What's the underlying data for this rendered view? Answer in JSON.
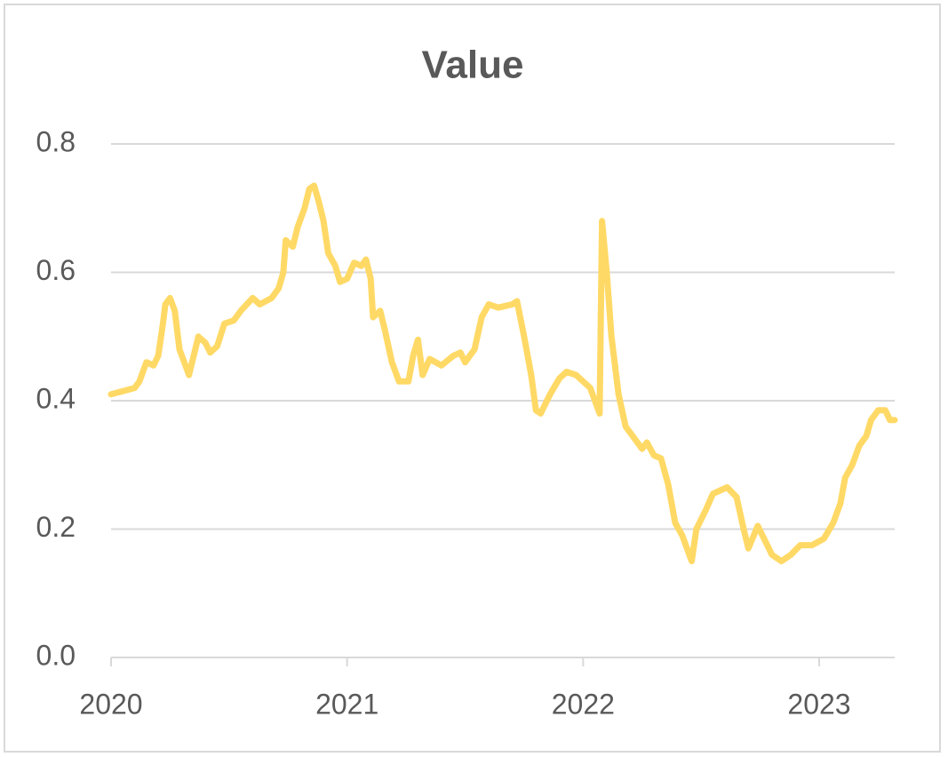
{
  "chart_data": {
    "type": "line",
    "title": "Value",
    "color": "#ffd966",
    "x": [
      2020.0,
      2020.05,
      2020.1,
      2020.12,
      2020.15,
      2020.18,
      2020.2,
      2020.22,
      2020.23,
      2020.25,
      2020.27,
      2020.29,
      2020.31,
      2020.33,
      2020.35,
      2020.37,
      2020.4,
      2020.42,
      2020.45,
      2020.48,
      2020.52,
      2020.55,
      2020.6,
      2020.63,
      2020.68,
      2020.71,
      2020.73,
      2020.74,
      2020.77,
      2020.79,
      2020.82,
      2020.84,
      2020.86,
      2020.88,
      2020.9,
      2020.92,
      2020.95,
      2020.97,
      2021.0,
      2021.03,
      2021.06,
      2021.08,
      2021.1,
      2021.11,
      2021.14,
      2021.16,
      2021.19,
      2021.22,
      2021.26,
      2021.28,
      2021.3,
      2021.32,
      2021.35,
      2021.4,
      2021.45,
      2021.48,
      2021.5,
      2021.54,
      2021.57,
      2021.6,
      2021.64,
      2021.7,
      2021.72,
      2021.75,
      2021.78,
      2021.8,
      2021.82,
      2021.86,
      2021.9,
      2021.93,
      2021.97,
      2022.0,
      2022.03,
      2022.07,
      2022.08,
      2022.1,
      2022.12,
      2022.15,
      2022.18,
      2022.22,
      2022.25,
      2022.27,
      2022.3,
      2022.33,
      2022.36,
      2022.39,
      2022.42,
      2022.46,
      2022.48,
      2022.52,
      2022.55,
      2022.58,
      2022.61,
      2022.65,
      2022.68,
      2022.7,
      2022.74,
      2022.76,
      2022.8,
      2022.84,
      2022.88,
      2022.92,
      2022.97,
      2023.02,
      2023.06,
      2023.09,
      2023.11,
      2023.14,
      2023.17,
      2023.2,
      2023.22,
      2023.25,
      2023.28,
      2023.3,
      2023.32
    ],
    "values": [
      0.41,
      0.415,
      0.42,
      0.43,
      0.46,
      0.455,
      0.47,
      0.52,
      0.55,
      0.56,
      0.54,
      0.48,
      0.46,
      0.44,
      0.47,
      0.5,
      0.49,
      0.475,
      0.485,
      0.52,
      0.525,
      0.54,
      0.56,
      0.55,
      0.56,
      0.575,
      0.6,
      0.65,
      0.64,
      0.67,
      0.7,
      0.73,
      0.735,
      0.71,
      0.68,
      0.63,
      0.61,
      0.585,
      0.59,
      0.615,
      0.61,
      0.62,
      0.59,
      0.53,
      0.54,
      0.51,
      0.46,
      0.43,
      0.43,
      0.47,
      0.495,
      0.44,
      0.465,
      0.455,
      0.47,
      0.475,
      0.46,
      0.48,
      0.53,
      0.55,
      0.545,
      0.55,
      0.555,
      0.5,
      0.44,
      0.385,
      0.38,
      0.41,
      0.435,
      0.445,
      0.44,
      0.43,
      0.42,
      0.38,
      0.68,
      0.6,
      0.5,
      0.41,
      0.36,
      0.34,
      0.325,
      0.335,
      0.315,
      0.31,
      0.27,
      0.21,
      0.19,
      0.15,
      0.2,
      0.23,
      0.255,
      0.26,
      0.265,
      0.25,
      0.2,
      0.17,
      0.205,
      0.19,
      0.16,
      0.15,
      0.16,
      0.175,
      0.175,
      0.185,
      0.21,
      0.24,
      0.28,
      0.3,
      0.33,
      0.345,
      0.37,
      0.385,
      0.385,
      0.37,
      0.37
    ],
    "xlim": [
      2020,
      2023.32
    ],
    "xticks": [
      2020,
      2021,
      2022,
      2023
    ],
    "ylim": [
      0,
      0.8
    ],
    "yticks": [
      {
        "value": 0,
        "label": "0.0"
      },
      0.2,
      0.4,
      0.6,
      0.8
    ],
    "grid": true
  }
}
